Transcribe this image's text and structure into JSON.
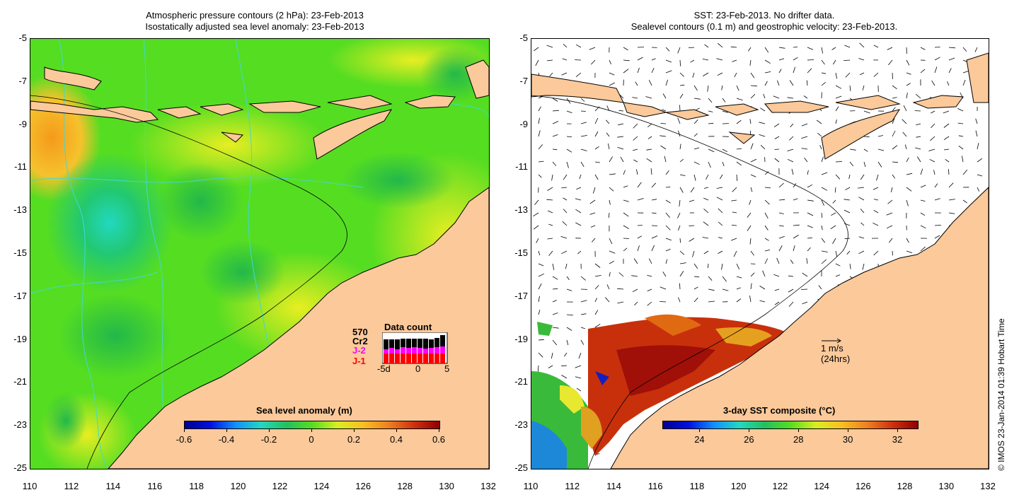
{
  "left_panel": {
    "title_line1": "Atmospheric pressure contours (2 hPa): 23-Feb-2013",
    "title_line2": "Isostatically adjusted sea level anomaly: 23-Feb-2013",
    "colorbar": {
      "title": "Sea level anomaly (m)",
      "ticks": [
        "-0.6",
        "-0.4",
        "-0.2",
        "0",
        "0.2",
        "0.4",
        "0.6"
      ],
      "range": [
        -0.6,
        0.6
      ]
    },
    "data_count": {
      "title": "Data count",
      "top_value": "570",
      "labels": [
        "Cr2",
        "J-2",
        "J-1"
      ],
      "label_colors": [
        "#000000",
        "#ff00ff",
        "#ff0000"
      ],
      "x_ticks": [
        "-5d",
        "0",
        "5"
      ]
    }
  },
  "right_panel": {
    "title_line1": "SST: 23-Feb-2013. No drifter data.",
    "title_line2": "Sealevel contours (0.1 m) and geostrophic velocity: 23-Feb-2013.",
    "colorbar": {
      "title": "3-day SST composite (°C)",
      "ticks": [
        "24",
        "26",
        "28",
        "30",
        "32"
      ],
      "range": [
        22.5,
        32.8
      ]
    },
    "scale_label_1": "1 m/s",
    "scale_label_2": "(24hrs)"
  },
  "axes": {
    "lat_ticks": [
      "-5",
      "-7",
      "-9",
      "-11",
      "-13",
      "-15",
      "-17",
      "-19",
      "-21",
      "-23",
      "-25"
    ],
    "lon_ticks": [
      "110",
      "112",
      "114",
      "116",
      "118",
      "120",
      "122",
      "124",
      "126",
      "128",
      "130",
      "132"
    ],
    "lat_range": [
      -25,
      -5
    ],
    "lon_range": [
      110,
      132
    ]
  },
  "credit": "© IMOS 23-Jan-2014 01:39 Hobart Time",
  "colors": {
    "land": "#fbc99a",
    "ocean_base": "#55dd22",
    "contour": "#40d8d8"
  }
}
